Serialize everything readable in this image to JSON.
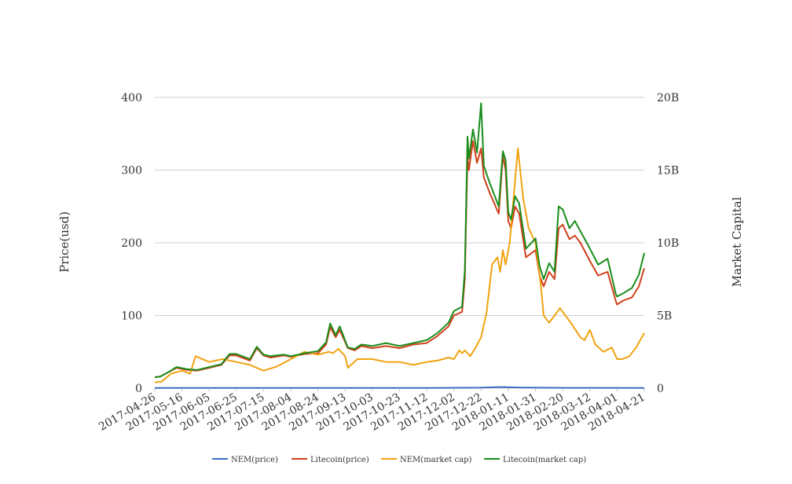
{
  "chart_data": {
    "type": "line",
    "title": "",
    "xlabel": "",
    "ylabel_left": "Price(usd)",
    "ylabel_right": "Market Capital",
    "ylim_left": [
      0,
      400
    ],
    "ylim_right": [
      0,
      20000000000
    ],
    "x_range": [
      "2017-04-26",
      "2018-04-21"
    ],
    "y_ticks_left": [
      "0",
      "100",
      "200",
      "300",
      "400"
    ],
    "y_ticks_right": [
      "0",
      "5B",
      "10B",
      "15B",
      "20B"
    ],
    "x_ticks": [
      "2017-04-26",
      "2017-05-16",
      "2017-06-05",
      "2017-06-25",
      "2017-07-15",
      "2017-08-04",
      "2017-08-24",
      "2017-09-13",
      "2017-10-03",
      "2017-10-23",
      "2017-11-12",
      "2017-12-02",
      "2017-12-22",
      "2018-01-11",
      "2018-01-31",
      "2018-02-20",
      "2018-03-12",
      "2018-04-01",
      "2018-04-21"
    ],
    "grid": true,
    "legend_position": "bottom",
    "series": [
      {
        "name": "NEM(price)",
        "axis": "left",
        "color": "#3b6cc4",
        "x": [
          "2017-04-26",
          "2017-06-05",
          "2017-08-04",
          "2017-09-13",
          "2017-11-12",
          "2017-12-22",
          "2018-01-06",
          "2018-01-20",
          "2018-02-20",
          "2018-04-21"
        ],
        "values": [
          0.2,
          0.2,
          0.2,
          0.3,
          0.2,
          0.7,
          1.5,
          0.9,
          0.4,
          0.3
        ]
      },
      {
        "name": "Litecoin(price)",
        "axis": "left",
        "color": "#d0401b",
        "x": [
          "2017-04-26",
          "2017-04-30",
          "2017-05-06",
          "2017-05-12",
          "2017-05-20",
          "2017-05-27",
          "2017-06-05",
          "2017-06-14",
          "2017-06-20",
          "2017-06-25",
          "2017-07-05",
          "2017-07-10",
          "2017-07-15",
          "2017-07-20",
          "2017-07-30",
          "2017-08-04",
          "2017-08-14",
          "2017-08-24",
          "2017-08-30",
          "2017-09-02",
          "2017-09-06",
          "2017-09-09",
          "2017-09-15",
          "2017-09-20",
          "2017-09-25",
          "2017-10-03",
          "2017-10-13",
          "2017-10-23",
          "2017-11-02",
          "2017-11-12",
          "2017-11-20",
          "2017-11-28",
          "2017-12-02",
          "2017-12-08",
          "2017-12-10",
          "2017-12-12",
          "2017-12-13",
          "2017-12-16",
          "2017-12-19",
          "2017-12-22",
          "2017-12-24",
          "2017-12-28",
          "2018-01-04",
          "2018-01-07",
          "2018-01-09",
          "2018-01-11",
          "2018-01-13",
          "2018-01-16",
          "2018-01-19",
          "2018-01-24",
          "2018-01-31",
          "2018-02-03",
          "2018-02-06",
          "2018-02-10",
          "2018-02-14",
          "2018-02-17",
          "2018-02-20",
          "2018-02-25",
          "2018-03-01",
          "2018-03-05",
          "2018-03-12",
          "2018-03-18",
          "2018-03-25",
          "2018-03-31",
          "2018-04-01",
          "2018-04-05",
          "2018-04-12",
          "2018-04-17",
          "2018-04-21"
        ],
        "values": [
          15,
          16,
          22,
          28,
          25,
          24,
          28,
          32,
          45,
          45,
          38,
          55,
          45,
          42,
          45,
          43,
          47,
          48,
          60,
          84,
          70,
          80,
          55,
          52,
          58,
          55,
          58,
          55,
          60,
          62,
          72,
          85,
          100,
          105,
          150,
          320,
          300,
          340,
          310,
          330,
          290,
          270,
          240,
          320,
          300,
          230,
          220,
          250,
          240,
          180,
          190,
          155,
          140,
          160,
          150,
          220,
          225,
          205,
          210,
          200,
          175,
          155,
          160,
          120,
          115,
          120,
          125,
          140,
          165
        ]
      },
      {
        "name": "NEM(market cap)",
        "axis": "right",
        "color": "#f0a30f",
        "x": [
          "2017-04-26",
          "2017-05-01",
          "2017-05-08",
          "2017-05-16",
          "2017-05-22",
          "2017-05-26",
          "2017-06-05",
          "2017-06-15",
          "2017-06-25",
          "2017-07-05",
          "2017-07-15",
          "2017-07-25",
          "2017-08-04",
          "2017-08-14",
          "2017-08-24",
          "2017-09-01",
          "2017-09-04",
          "2017-09-08",
          "2017-09-13",
          "2017-09-15",
          "2017-09-22",
          "2017-10-03",
          "2017-10-13",
          "2017-10-23",
          "2017-11-02",
          "2017-11-12",
          "2017-11-20",
          "2017-11-28",
          "2017-12-02",
          "2017-12-06",
          "2017-12-08",
          "2017-12-10",
          "2017-12-14",
          "2017-12-18",
          "2017-12-22",
          "2017-12-26",
          "2017-12-30",
          "2018-01-03",
          "2018-01-05",
          "2018-01-07",
          "2018-01-09",
          "2018-01-12",
          "2018-01-18",
          "2018-01-22",
          "2018-01-26",
          "2018-01-31",
          "2018-02-04",
          "2018-02-06",
          "2018-02-10",
          "2018-02-14",
          "2018-02-18",
          "2018-02-22",
          "2018-02-26",
          "2018-03-05",
          "2018-03-08",
          "2018-03-12",
          "2018-03-16",
          "2018-03-22",
          "2018-03-28",
          "2018-04-01",
          "2018-04-05",
          "2018-04-10",
          "2018-04-15",
          "2018-04-21"
        ],
        "values": [
          400000000,
          450000000,
          1000000000,
          1200000000,
          1000000000,
          2200000000,
          1800000000,
          2000000000,
          1800000000,
          1600000000,
          1200000000,
          1500000000,
          2000000000,
          2500000000,
          2300000000,
          2500000000,
          2400000000,
          2700000000,
          2200000000,
          1400000000,
          2000000000,
          2000000000,
          1800000000,
          1800000000,
          1600000000,
          1800000000,
          1900000000,
          2100000000,
          2000000000,
          2600000000,
          2400000000,
          2600000000,
          2200000000,
          2800000000,
          3500000000,
          5200000000,
          8500000000,
          9000000000,
          8000000000,
          9500000000,
          8500000000,
          10000000000,
          16500000000,
          13000000000,
          11000000000,
          10000000000,
          7000000000,
          5000000000,
          4500000000,
          5000000000,
          5500000000,
          5000000000,
          4500000000,
          3500000000,
          3300000000,
          4000000000,
          3000000000,
          2500000000,
          2800000000,
          2000000000,
          2000000000,
          2200000000,
          2800000000,
          3800000000
        ]
      },
      {
        "name": "Litecoin(market cap)",
        "axis": "right",
        "color": "#1a8c1a",
        "x": [
          "2017-04-26",
          "2017-04-30",
          "2017-05-06",
          "2017-05-12",
          "2017-05-20",
          "2017-05-27",
          "2017-06-05",
          "2017-06-14",
          "2017-06-20",
          "2017-06-25",
          "2017-07-05",
          "2017-07-10",
          "2017-07-15",
          "2017-07-20",
          "2017-07-30",
          "2017-08-04",
          "2017-08-14",
          "2017-08-24",
          "2017-08-30",
          "2017-09-02",
          "2017-09-06",
          "2017-09-09",
          "2017-09-15",
          "2017-09-20",
          "2017-09-25",
          "2017-10-03",
          "2017-10-13",
          "2017-10-23",
          "2017-11-02",
          "2017-11-12",
          "2017-11-20",
          "2017-11-28",
          "2017-12-02",
          "2017-12-08",
          "2017-12-10",
          "2017-12-12",
          "2017-12-13",
          "2017-12-16",
          "2017-12-19",
          "2017-12-22",
          "2017-12-24",
          "2017-12-28",
          "2018-01-04",
          "2018-01-07",
          "2018-01-09",
          "2018-01-11",
          "2018-01-13",
          "2018-01-16",
          "2018-01-19",
          "2018-01-24",
          "2018-01-31",
          "2018-02-03",
          "2018-02-06",
          "2018-02-10",
          "2018-02-14",
          "2018-02-17",
          "2018-02-20",
          "2018-02-25",
          "2018-03-01",
          "2018-03-05",
          "2018-03-12",
          "2018-03-18",
          "2018-03-25",
          "2018-03-31",
          "2018-04-01",
          "2018-04-05",
          "2018-04-12",
          "2018-04-17",
          "2018-04-21"
        ],
        "values": [
          750000000,
          800000000,
          1100000000,
          1450000000,
          1300000000,
          1250000000,
          1450000000,
          1650000000,
          2350000000,
          2350000000,
          2000000000,
          2850000000,
          2300000000,
          2200000000,
          2300000000,
          2200000000,
          2400000000,
          2550000000,
          3150000000,
          4450000000,
          3650000000,
          4250000000,
          2800000000,
          2700000000,
          3000000000,
          2900000000,
          3100000000,
          2900000000,
          3100000000,
          3300000000,
          3800000000,
          4500000000,
          5300000000,
          5600000000,
          8100000000,
          17300000000,
          15800000000,
          17800000000,
          16200000000,
          19600000000,
          15300000000,
          14200000000,
          12500000000,
          16300000000,
          15700000000,
          12100000000,
          11600000000,
          13200000000,
          12700000000,
          9600000000,
          10300000000,
          8400000000,
          7500000000,
          8600000000,
          8000000000,
          12500000000,
          12300000000,
          11000000000,
          11500000000,
          10800000000,
          9600000000,
          8500000000,
          8900000000,
          6500000000,
          6300000000,
          6500000000,
          6900000000,
          7800000000,
          9300000000
        ]
      }
    ]
  }
}
